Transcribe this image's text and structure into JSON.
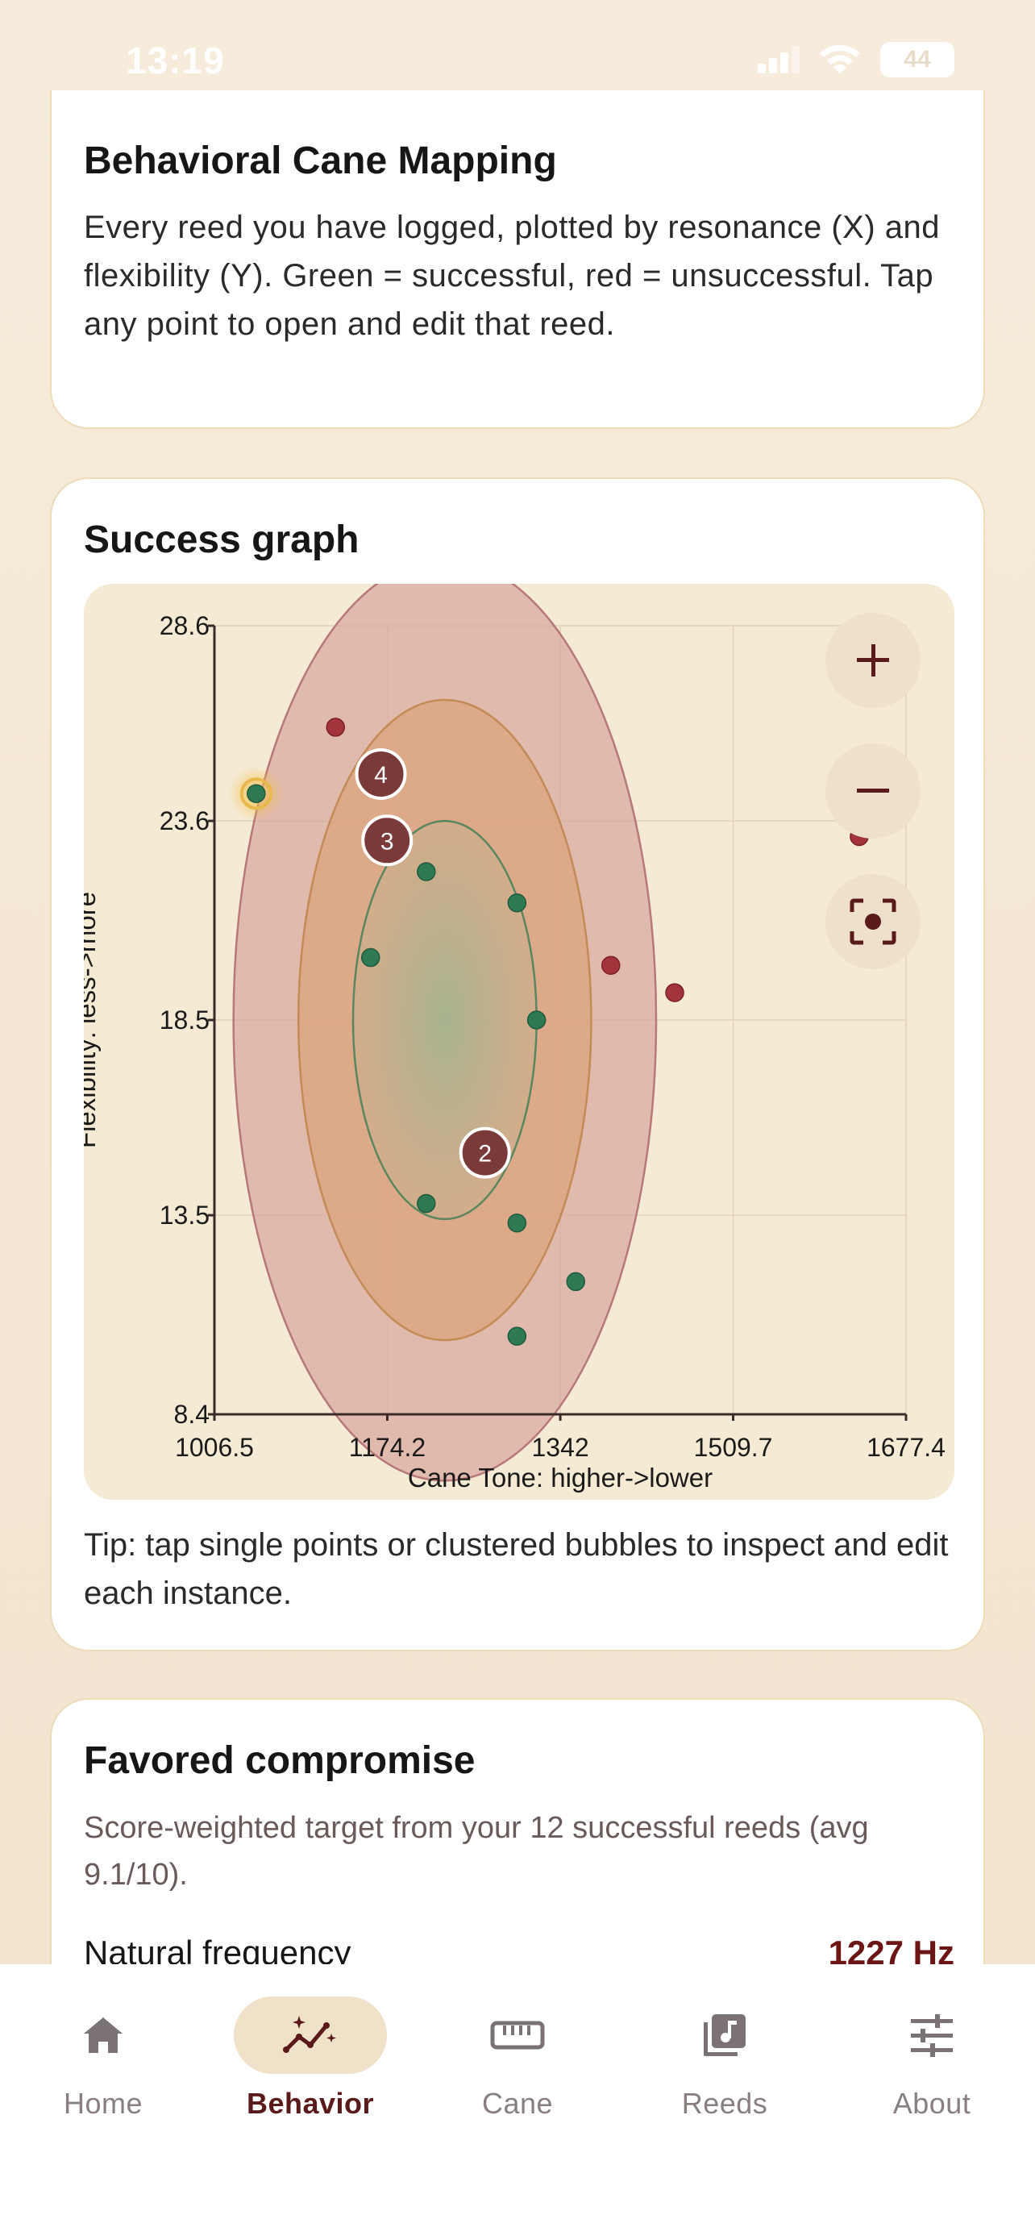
{
  "status_bar": {
    "time": "13:19",
    "battery": "44"
  },
  "mapping_card": {
    "title": "Behavioral Cane Mapping",
    "description": "Every reed you have logged, plotted by resonance (X) and flexibility (Y). Green = successful, red = unsuccessful. Tap any point to open and edit that reed."
  },
  "success_card": {
    "title": "Success graph",
    "tip": "Tip: tap single points or clustered bubbles to inspect and edit each instance.",
    "controls": {
      "zoom_in": "plus-icon",
      "zoom_out": "minus-icon",
      "recenter": "recenter-icon"
    }
  },
  "chart_data": {
    "type": "scatter",
    "xlabel": "Cane Tone: higher->lower",
    "ylabel": "Flexibility: less->more",
    "xlim": [
      1006.5,
      1677.4
    ],
    "ylim": [
      8.4,
      28.6
    ],
    "x_ticks": [
      "1006.5",
      "1174.2",
      "1342",
      "1509.7",
      "1677.4"
    ],
    "y_ticks": [
      "28.6",
      "23.6",
      "18.5",
      "13.5",
      "8.4"
    ],
    "colors": {
      "success": "#2f7a55",
      "failure": "#a3343c",
      "cluster": "#7a3a3a",
      "highlight": "#e8b84a"
    },
    "successful": [
      [
        1047,
        24.3
      ],
      [
        1158,
        20.1
      ],
      [
        1212,
        22.3
      ],
      [
        1300,
        21.5
      ],
      [
        1319,
        18.5
      ],
      [
        1212,
        13.8
      ],
      [
        1300,
        13.3
      ],
      [
        1357,
        11.8
      ],
      [
        1300,
        10.4
      ]
    ],
    "unsuccessful": [
      [
        1124,
        26.0
      ],
      [
        1391,
        19.9
      ],
      [
        1453,
        19.2
      ],
      [
        1632,
        23.2
      ]
    ],
    "clusters": [
      {
        "label": "4",
        "x": 1168,
        "y": 24.8
      },
      {
        "label": "3",
        "x": 1174,
        "y": 23.1
      },
      {
        "label": "2",
        "x": 1269,
        "y": 15.1
      }
    ],
    "highlighted_point": [
      1047,
      24.3
    ],
    "regions": [
      {
        "name": "outer",
        "cx": 1230,
        "cy": 18.5,
        "rx": 205,
        "ry": 11.8,
        "fill": "#d9a8a0",
        "stroke": "#b7787a"
      },
      {
        "name": "middle",
        "cx": 1230,
        "cy": 18.5,
        "rx": 142,
        "ry": 8.2,
        "fill": "#d9a27c",
        "stroke": "#c38b56"
      },
      {
        "name": "inner",
        "cx": 1230,
        "cy": 18.5,
        "rx": 89,
        "ry": 5.1,
        "fill": "#b9b089",
        "stroke": "#5b8760"
      }
    ]
  },
  "compromise_card": {
    "title": "Favored compromise",
    "subtitle": "Score-weighted target from your 12 successful reeds (avg 9.1/10).",
    "metric_label": "Natural frequency",
    "metric_value": "1227 Hz"
  },
  "nav": {
    "items": [
      {
        "label": "Home",
        "icon": "home-icon",
        "active": false
      },
      {
        "label": "Behavior",
        "icon": "behavior-icon",
        "active": true
      },
      {
        "label": "Cane",
        "icon": "cane-ruler-icon",
        "active": false
      },
      {
        "label": "Reeds",
        "icon": "music-library-icon",
        "active": false
      },
      {
        "label": "About",
        "icon": "sliders-icon",
        "active": false
      }
    ]
  }
}
